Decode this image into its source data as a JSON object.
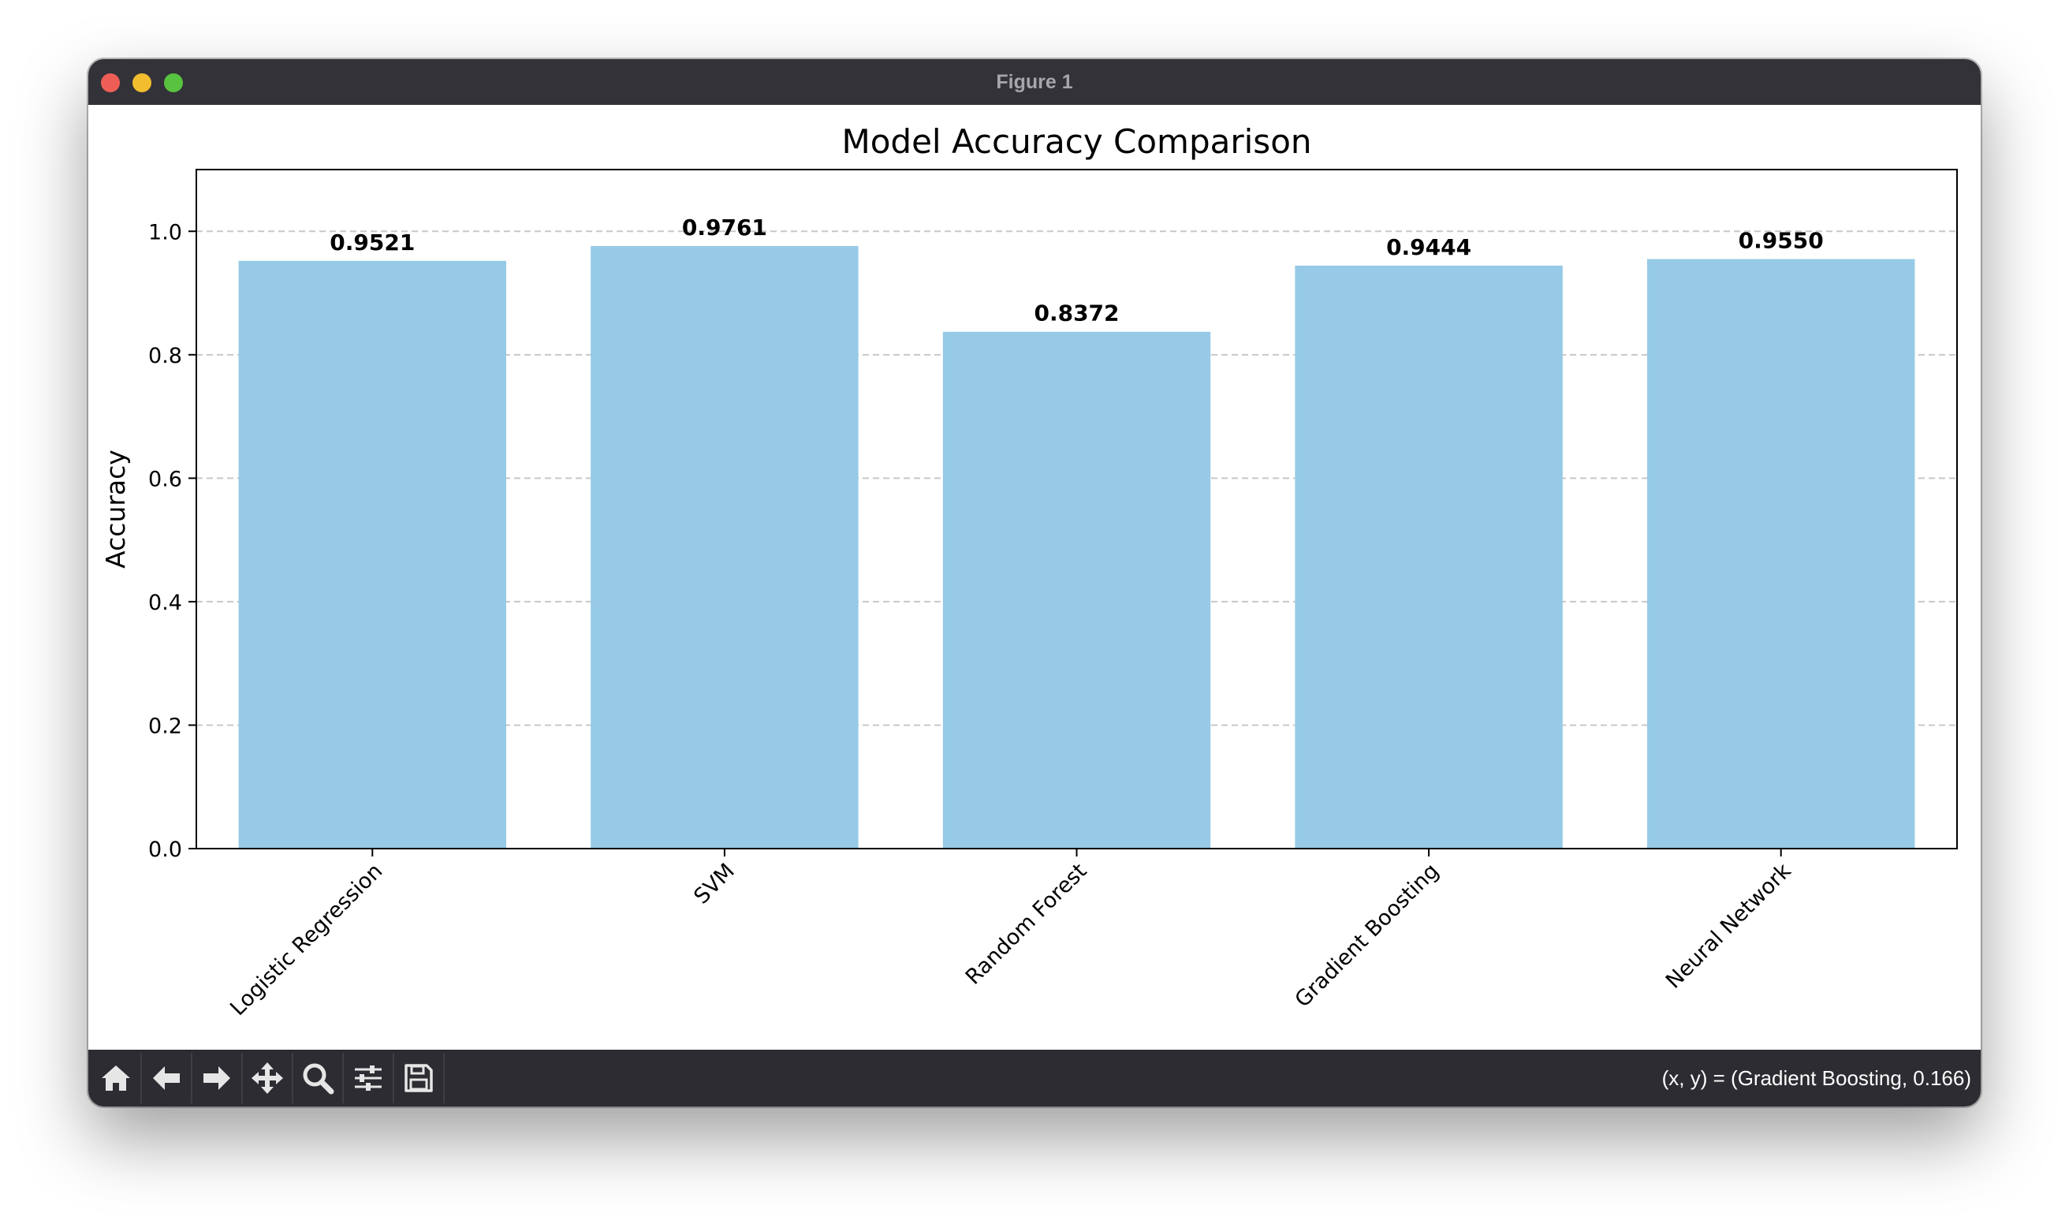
{
  "window": {
    "title": "Figure 1"
  },
  "toolbar": {
    "tools": [
      {
        "name": "home-icon"
      },
      {
        "name": "back-arrow-icon"
      },
      {
        "name": "forward-arrow-icon"
      },
      {
        "name": "pan-move-icon"
      },
      {
        "name": "zoom-magnifier-icon"
      },
      {
        "name": "configure-subplots-icon"
      },
      {
        "name": "save-floppy-icon"
      }
    ],
    "coords": "(x, y) = (Gradient Boosting, 0.166)"
  },
  "chart_data": {
    "type": "bar",
    "title": "Model Accuracy Comparison",
    "xlabel": "",
    "ylabel": "Accuracy",
    "categories": [
      "Logistic Regression",
      "SVM",
      "Random Forest",
      "Gradient Boosting",
      "Neural Network"
    ],
    "values": [
      0.9521,
      0.9761,
      0.8372,
      0.9444,
      0.955
    ],
    "value_labels": [
      "0.9521",
      "0.9761",
      "0.8372",
      "0.9444",
      "0.9550"
    ],
    "ylim": [
      0,
      1.1
    ],
    "yticks": [
      0.0,
      0.2,
      0.4,
      0.6,
      0.8,
      1.0
    ],
    "ytick_labels": [
      "0.0",
      "0.2",
      "0.4",
      "0.6",
      "0.8",
      "1.0"
    ],
    "grid": "y-dashed",
    "bar_color": "#96cae6",
    "legend": "none"
  }
}
